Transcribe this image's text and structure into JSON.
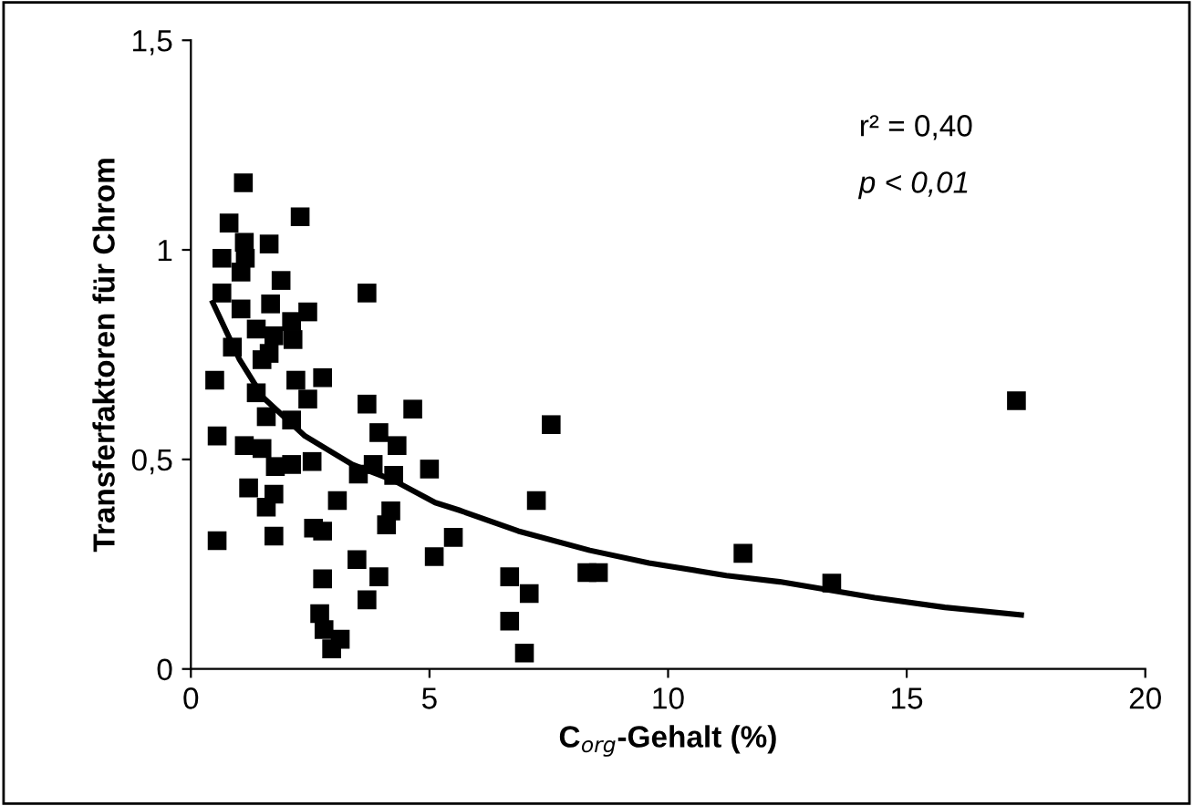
{
  "chart_data": {
    "type": "scatter",
    "xlabel": "C$_{org}$-Gehalt (%)",
    "ylabel": "Transferfaktoren für Chrom",
    "annotations": [
      "r² = 0,40",
      "p < 0,01"
    ],
    "xlim": [
      0,
      20
    ],
    "xticks": [
      0,
      5,
      10,
      15,
      20
    ],
    "ylim": [
      0,
      1.5
    ],
    "yticks": [
      0,
      {
        "value": 0.5,
        "label": "0,5"
      },
      1,
      {
        "value": 1.5,
        "label": "1,5"
      }
    ],
    "grid": false,
    "legend": false,
    "marker": "square",
    "series": [
      {
        "color": "#000000",
        "x": [
          1.1,
          0.8,
          2.29,
          1.12,
          1.64,
          0.65,
          1.14,
          1.05,
          1.89,
          0.65,
          3.69,
          1.05,
          1.67,
          2.45,
          2.11,
          1.37,
          1.74,
          2.14,
          0.87,
          1.64,
          1.49,
          0.5,
          2.2,
          2.76,
          1.37,
          2.45,
          3.69,
          4.65,
          1.58,
          2.11,
          3.94,
          4.32,
          0.55,
          1.12,
          1.49,
          2.54,
          1.77,
          2.11,
          3.51,
          3.82,
          4.25,
          5.0,
          1.21,
          1.74,
          3.07,
          1.58,
          4.19,
          4.1,
          2.57,
          2.76,
          0.55,
          1.74,
          5.1,
          3.48,
          3.94,
          2.76,
          3.69,
          2.7,
          2.79,
          3.13,
          2.95,
          5.5,
          7.55,
          7.24,
          6.68,
          7.09,
          6.68,
          6.99,
          8.3,
          8.54,
          11.57,
          13.43,
          17.3
        ],
        "values": [
          1.16,
          1.064,
          1.079,
          1.018,
          1.014,
          0.98,
          0.98,
          0.947,
          0.927,
          0.897,
          0.897,
          0.859,
          0.871,
          0.852,
          0.829,
          0.811,
          0.795,
          0.786,
          0.768,
          0.753,
          0.738,
          0.689,
          0.689,
          0.695,
          0.659,
          0.644,
          0.632,
          0.62,
          0.602,
          0.594,
          0.564,
          0.533,
          0.556,
          0.533,
          0.526,
          0.495,
          0.483,
          0.488,
          0.465,
          0.488,
          0.462,
          0.477,
          0.432,
          0.417,
          0.402,
          0.386,
          0.377,
          0.344,
          0.336,
          0.329,
          0.306,
          0.317,
          0.268,
          0.261,
          0.22,
          0.215,
          0.165,
          0.132,
          0.094,
          0.071,
          0.048,
          0.314,
          0.583,
          0.402,
          0.22,
          0.18,
          0.114,
          0.038,
          0.23,
          0.23,
          0.276,
          0.205,
          0.64
        ]
      },
      {
        "type": "line",
        "color": "#000000",
        "marker": "none",
        "line_style": "solid",
        "x": [
          0.46,
          1.02,
          1.52,
          2.39,
          3.38,
          4.25,
          5.12,
          5.62,
          6.86,
          8.36,
          9.6,
          11.22,
          12.34,
          14.33,
          15.8,
          17.4
        ],
        "values": [
          0.874,
          0.738,
          0.647,
          0.556,
          0.488,
          0.45,
          0.397,
          0.379,
          0.329,
          0.283,
          0.253,
          0.223,
          0.208,
          0.17,
          0.147,
          0.129
        ]
      }
    ]
  }
}
